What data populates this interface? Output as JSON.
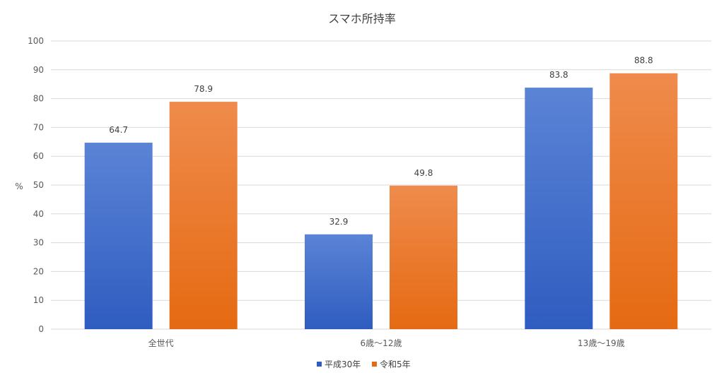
{
  "chart_data": {
    "type": "bar",
    "title": "スマホ所持率",
    "ylabel": "%",
    "xlabel": "",
    "ylim": [
      0,
      100
    ],
    "yticks": [
      0,
      10,
      20,
      30,
      40,
      50,
      60,
      70,
      80,
      90,
      100
    ],
    "categories": [
      "全世代",
      "6歳～12歳",
      "13歳～19歳"
    ],
    "series": [
      {
        "name": "平成30年",
        "values": [
          64.7,
          32.9,
          83.8
        ],
        "color_top": "#5B84D6",
        "color_bottom": "#2F5CC0"
      },
      {
        "name": "令和5年",
        "values": [
          78.9,
          49.8,
          88.8
        ],
        "color_top": "#EF8B4C",
        "color_bottom": "#E56A12"
      }
    ],
    "data_labels": true,
    "grid": true,
    "legend_position": "bottom"
  }
}
